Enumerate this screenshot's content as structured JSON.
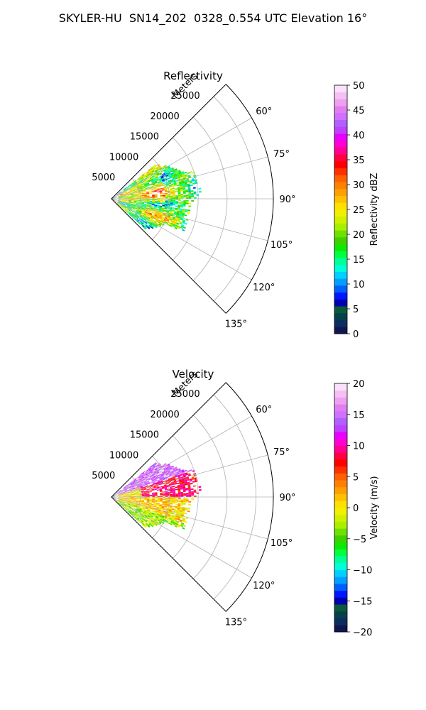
{
  "figure": {
    "suptitle": "SKYLER-HU  SN14_202  0328_0.554 UTC Elevation 16°"
  },
  "chart_data": [
    {
      "type": "heatmap",
      "projection": "polar-sector",
      "title": "Reflectivity",
      "range_label": "Meters",
      "range_ticks": [
        "5000",
        "10000",
        "15000",
        "20000",
        "25000"
      ],
      "range_max": 28000,
      "azimuth_range": [
        45,
        135
      ],
      "azimuth_ticks": [
        "60°",
        "75°",
        "90°",
        "105°",
        "120°",
        "135°"
      ],
      "grid": true,
      "colorbar": {
        "label": "Reflectivity dBZ",
        "min": 0,
        "max": 50,
        "ticks": [
          "0",
          "5",
          "10",
          "15",
          "20",
          "25",
          "30",
          "35",
          "40",
          "45",
          "50"
        ],
        "colors": [
          "#101550",
          "#0a2e5e",
          "#06404a",
          "#0a5a3a",
          "#0000b0",
          "#0018ff",
          "#0060ff",
          "#00a0ff",
          "#00d0ff",
          "#00ffd8",
          "#00ff9a",
          "#00ff40",
          "#10e800",
          "#40d000",
          "#70e000",
          "#a8f000",
          "#d0f000",
          "#f0f000",
          "#ffe000",
          "#ffc000",
          "#ffa000",
          "#ff8000",
          "#ff6000",
          "#ff3000",
          "#ff0000",
          "#ff0040",
          "#ff0090",
          "#ff00d0",
          "#e800ff",
          "#c040ff",
          "#b060ff",
          "#d070ff",
          "#e080f0",
          "#f0a0f0",
          "#f4c0f4",
          "#fae0fa"
        ]
      },
      "echo_description": "Reflectivity echoes roughly 10–30 dBZ at azimuths ~55–130° out to ~20000 m"
    },
    {
      "type": "heatmap",
      "projection": "polar-sector",
      "title": "Velocity",
      "range_label": "Meters",
      "range_ticks": [
        "5000",
        "10000",
        "15000",
        "20000",
        "25000"
      ],
      "range_max": 28000,
      "azimuth_range": [
        45,
        135
      ],
      "azimuth_ticks": [
        "60°",
        "75°",
        "90°",
        "105°",
        "120°",
        "135°"
      ],
      "grid": true,
      "colorbar": {
        "label": "Velocity (m/s)",
        "min": -20,
        "max": 20,
        "ticks": [
          "−20",
          "−15",
          "−10",
          "−5",
          "0",
          "5",
          "10",
          "15",
          "20"
        ],
        "colors": [
          "#101550",
          "#0a2e5e",
          "#06404a",
          "#0a5a3a",
          "#0000b0",
          "#0018ff",
          "#0060ff",
          "#00a0ff",
          "#00d0ff",
          "#00ffd8",
          "#00ff9a",
          "#00ff40",
          "#10e800",
          "#40d000",
          "#70e000",
          "#a8f000",
          "#d0f000",
          "#f0f000",
          "#ffe000",
          "#ffc000",
          "#ffa000",
          "#ff8000",
          "#ff6000",
          "#ff3000",
          "#ff0000",
          "#ff0040",
          "#ff0090",
          "#ff00d0",
          "#e800ff",
          "#c040ff",
          "#b060ff",
          "#d070ff",
          "#e080f0",
          "#f0a0f0",
          "#f4c0f4",
          "#fae0fa"
        ]
      },
      "echo_description": "Radial velocities roughly -7 to +17 m/s, positive (red/magenta) at azimuths ~60–90°, near zero (yellow/green) at ~95–130°"
    }
  ]
}
